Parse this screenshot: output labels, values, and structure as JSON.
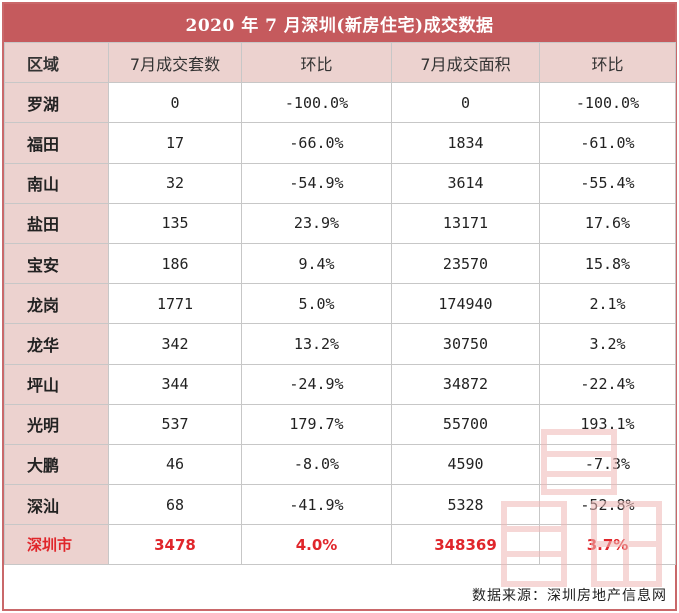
{
  "title": "2020 年 7 月深圳(新房住宅)成交数据",
  "headers": [
    "区域",
    "7月成交套数",
    "环比",
    "7月成交面积",
    "环比"
  ],
  "rows": [
    {
      "region": "罗湖",
      "units": "0",
      "units_mom": "-100.0%",
      "area": "0",
      "area_mom": "-100.0%"
    },
    {
      "region": "福田",
      "units": "17",
      "units_mom": "-66.0%",
      "area": "1834",
      "area_mom": "-61.0%"
    },
    {
      "region": "南山",
      "units": "32",
      "units_mom": "-54.9%",
      "area": "3614",
      "area_mom": "-55.4%"
    },
    {
      "region": "盐田",
      "units": "135",
      "units_mom": "23.9%",
      "area": "13171",
      "area_mom": "17.6%"
    },
    {
      "region": "宝安",
      "units": "186",
      "units_mom": "9.4%",
      "area": "23570",
      "area_mom": "15.8%"
    },
    {
      "region": "龙岗",
      "units": "1771",
      "units_mom": "5.0%",
      "area": "174940",
      "area_mom": "2.1%"
    },
    {
      "region": "龙华",
      "units": "342",
      "units_mom": "13.2%",
      "area": "30750",
      "area_mom": "3.2%"
    },
    {
      "region": "坪山",
      "units": "344",
      "units_mom": "-24.9%",
      "area": "34872",
      "area_mom": "-22.4%"
    },
    {
      "region": "光明",
      "units": "537",
      "units_mom": "179.7%",
      "area": "55700",
      "area_mom": "193.1%"
    },
    {
      "region": "大鹏",
      "units": "46",
      "units_mom": "-8.0%",
      "area": "4590",
      "area_mom": "-7.3%"
    },
    {
      "region": "深汕",
      "units": "68",
      "units_mom": "-41.9%",
      "area": "5328",
      "area_mom": "-52.8%"
    }
  ],
  "total": {
    "region": "深圳市",
    "units": "3478",
    "units_mom": "4.0%",
    "area": "348369",
    "area_mom": "3.7%"
  },
  "source": "数据来源：深圳房地产信息网",
  "colors": {
    "title_bg": "#c55a5d",
    "header_bg": "#ecd2cf",
    "total_text": "#e0262b"
  }
}
